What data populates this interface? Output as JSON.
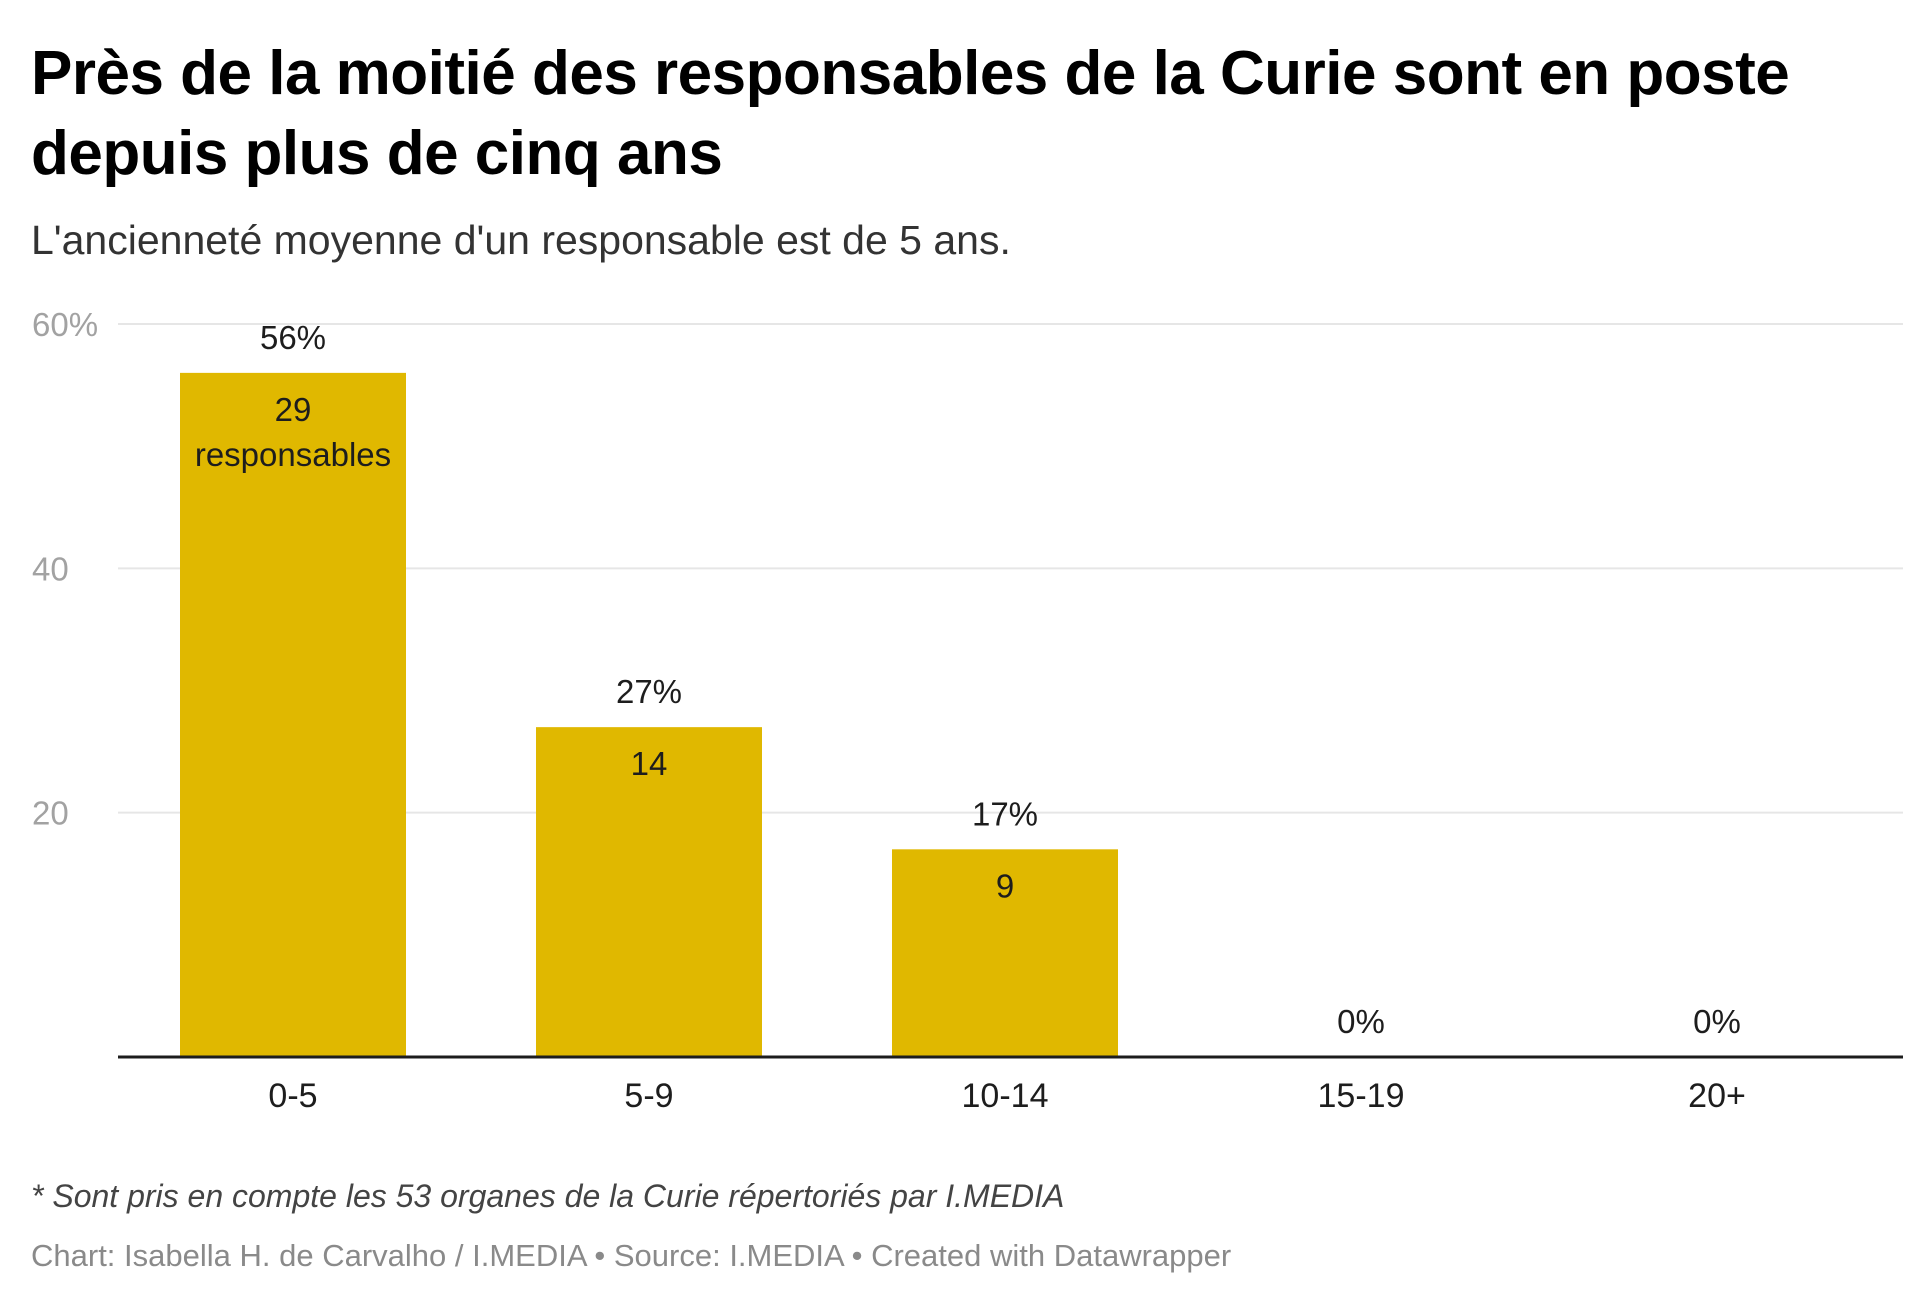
{
  "header": {
    "title": "Près de la moitié des responsables de la Curie sont en poste depuis plus de cinq ans",
    "subtitle": "L'ancienneté moyenne d'un responsable est de 5 ans."
  },
  "chart_data": {
    "type": "bar",
    "categories": [
      "0-5",
      "5-9",
      "10-14",
      "15-19",
      "20+"
    ],
    "values": [
      56,
      27,
      17,
      0,
      0
    ],
    "value_labels": [
      "56%",
      "27%",
      "17%",
      "0%",
      "0%"
    ],
    "counts": [
      29,
      14,
      9,
      null,
      null
    ],
    "count_labels": [
      "29 responsables",
      "14",
      "9",
      "",
      ""
    ],
    "yticks": [
      20,
      40,
      60
    ],
    "ytick_labels": [
      "20",
      "40",
      "60%"
    ],
    "ylim": [
      0,
      60
    ],
    "grid": true,
    "colors": {
      "bar": "#e0b800",
      "grid": "#e6e6e6",
      "baseline": "#1d1d1d"
    }
  },
  "notes": {
    "footnote": "* Sont pris en compte les 53 organes de la Curie répertoriés par I.MEDIA",
    "credit": "Chart: Isabella H. de Carvalho / I.MEDIA • Source: I.MEDIA • Created with Datawrapper"
  }
}
